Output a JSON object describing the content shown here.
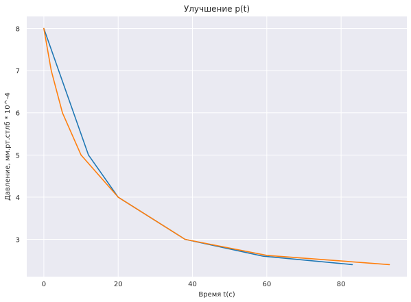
{
  "chart_data": {
    "type": "line",
    "title": "Улучшение p(t)",
    "xlabel": "Время t(c)",
    "ylabel": "Давление, мм.рт.стлб * 10^-4",
    "xlim": [
      -4.6,
      97.7
    ],
    "ylim": [
      2.115,
      8.285
    ],
    "xticks": [
      "0",
      "20",
      "40",
      "60",
      "80"
    ],
    "yticks": [
      "3",
      "4",
      "5",
      "6",
      "7",
      "8"
    ],
    "grid": true,
    "background": "#eaeaf2",
    "series": [
      {
        "color": "#1f77b4",
        "x": [
          0,
          12,
          20,
          38,
          59,
          83
        ],
        "y": [
          8,
          5,
          4,
          3,
          2.6,
          2.4
        ]
      },
      {
        "color": "#ff7f0e",
        "x": [
          0,
          2,
          5,
          10,
          20,
          38,
          60,
          93
        ],
        "y": [
          8,
          7,
          6,
          5,
          4,
          3,
          2.62,
          2.4
        ]
      }
    ]
  }
}
